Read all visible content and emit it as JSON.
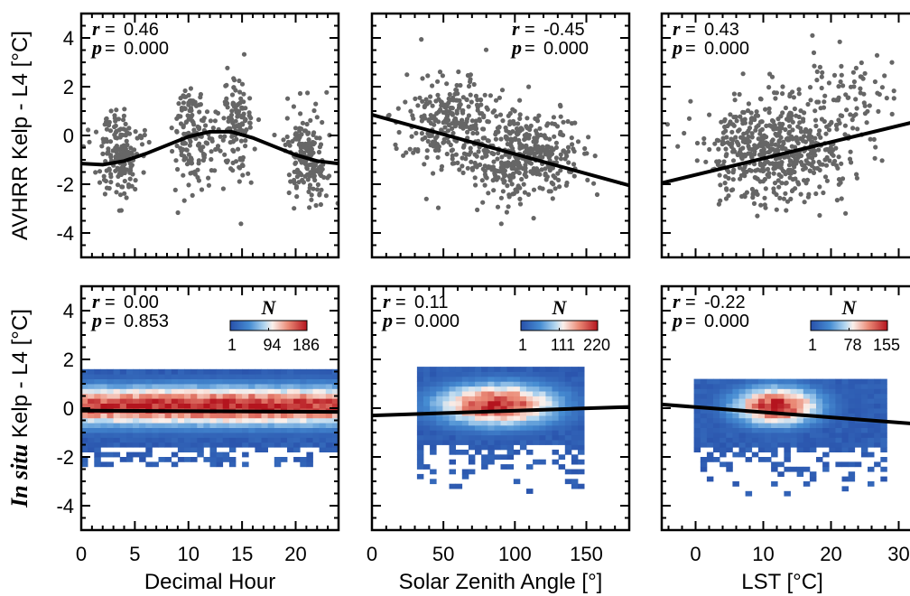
{
  "figure": {
    "row_ylabels": [
      {
        "parts": [
          "AVHRR Kelp - L4 [°C]"
        ]
      },
      {
        "italic": "In situ",
        "rest": " Kelp - L4 [°C]"
      }
    ],
    "xlabels": [
      "Decimal Hour",
      "Solar Zenith Angle [°]",
      "LST [°C]"
    ]
  },
  "chart_data": [
    {
      "id": "top-left",
      "type": "scatter",
      "xlim": [
        0,
        24
      ],
      "ylim": [
        -5,
        5
      ],
      "xticks": [
        0,
        5,
        10,
        15,
        20
      ],
      "yticks": [
        -4,
        -2,
        0,
        2,
        4
      ],
      "xtick_labels": [
        "0",
        "5",
        "10",
        "15",
        "20"
      ],
      "ytick_labels": [
        "-4",
        "-2",
        "0",
        "2",
        "4"
      ],
      "stats": {
        "r_label": "r",
        "r": "0.46",
        "p_label": "p",
        "p": "0.000"
      },
      "stats_position": "top-left",
      "point_color": "#666666",
      "clusters": [
        {
          "x_center": 3.5,
          "x_spread": 1.0,
          "y_center": -0.9,
          "y_spread": 1.1,
          "n": 170
        },
        {
          "x_center": 10.3,
          "x_spread": 0.9,
          "y_center": 0.0,
          "y_spread": 1.3,
          "n": 150
        },
        {
          "x_center": 14.3,
          "x_spread": 0.9,
          "y_center": 0.5,
          "y_spread": 1.3,
          "n": 130
        },
        {
          "x_center": 21.0,
          "x_spread": 1.0,
          "y_center": -0.8,
          "y_spread": 1.1,
          "n": 180
        }
      ],
      "fit_line": {
        "x": [
          0,
          2,
          4,
          6,
          8,
          10,
          12,
          14,
          16,
          18,
          20,
          22,
          24
        ],
        "y": [
          -1.15,
          -1.2,
          -1.05,
          -0.75,
          -0.4,
          -0.05,
          0.15,
          0.15,
          -0.1,
          -0.45,
          -0.8,
          -1.05,
          -1.15
        ]
      }
    },
    {
      "id": "top-middle",
      "type": "scatter",
      "xlim": [
        0,
        180
      ],
      "ylim": [
        -5,
        5
      ],
      "xticks": [
        0,
        50,
        100,
        150
      ],
      "yticks": [
        -4,
        -2,
        0,
        2,
        4
      ],
      "xtick_labels": [
        "0",
        "50",
        "100",
        "150"
      ],
      "ytick_labels": [],
      "stats": {
        "r_label": "r",
        "r": "-0.45",
        "p_label": "p",
        "p": "0.000"
      },
      "stats_position": "top-right",
      "point_color": "#666666",
      "clusters": [
        {
          "x_center": 55,
          "x_spread": 18,
          "y_center": 0.6,
          "y_spread": 1.1,
          "n": 260
        },
        {
          "x_center": 105,
          "x_spread": 20,
          "y_center": -0.8,
          "y_spread": 1.0,
          "n": 420
        }
      ],
      "fit_line": {
        "x": [
          0,
          180
        ],
        "y": [
          0.85,
          -2.05
        ]
      }
    },
    {
      "id": "top-right",
      "type": "scatter",
      "xlim": [
        -5,
        33
      ],
      "ylim": [
        -5,
        5
      ],
      "xticks": [
        0,
        10,
        20,
        30
      ],
      "yticks": [
        -4,
        -2,
        0,
        2,
        4
      ],
      "xtick_labels": [
        "0",
        "10",
        "20",
        "30"
      ],
      "ytick_labels": [],
      "stats": {
        "r_label": "r",
        "r": "0.43",
        "p_label": "p",
        "p": "0.000"
      },
      "stats_position": "top-left",
      "point_color": "#666666",
      "clusters": [
        {
          "x_center": 12,
          "x_spread": 5,
          "y_center": -0.6,
          "y_spread": 1.2,
          "n": 560
        },
        {
          "x_center": 22,
          "x_spread": 3.5,
          "y_center": 1.3,
          "y_spread": 1.3,
          "n": 90
        }
      ],
      "fit_line": {
        "x": [
          -5,
          33
        ],
        "y": [
          -1.95,
          0.6
        ]
      }
    },
    {
      "id": "bottom-left",
      "type": "heatmap",
      "xlim": [
        0,
        24
      ],
      "ylim": [
        -5,
        5
      ],
      "xticks": [
        0,
        5,
        10,
        15,
        20
      ],
      "yticks": [
        -4,
        -2,
        0,
        2,
        4
      ],
      "xtick_labels": [
        "0",
        "5",
        "10",
        "15",
        "20"
      ],
      "ytick_labels": [
        "-4",
        "-2",
        "0",
        "2",
        "4"
      ],
      "stats": {
        "r_label": "r",
        "r": "0.00",
        "p_label": "p",
        "p": "0.853"
      },
      "stats_position": "top-left",
      "colorbar": {
        "label": "N",
        "tick_labels": [
          "1",
          "94",
          "186"
        ],
        "min": 1,
        "max": 186
      },
      "density": {
        "x_range": [
          0,
          24
        ],
        "y_range": [
          -2.4,
          1.6
        ],
        "x_center": 12,
        "x_spread": 30,
        "y_center": 0.1,
        "y_spread": 0.55,
        "peak_x": [
          3,
          6,
          8.5,
          11,
          15,
          17.5,
          21
        ]
      },
      "fit_line": {
        "x": [
          0,
          24
        ],
        "y": [
          -0.1,
          -0.15
        ]
      }
    },
    {
      "id": "bottom-middle",
      "type": "heatmap",
      "xlim": [
        0,
        180
      ],
      "ylim": [
        -5,
        5
      ],
      "xticks": [
        0,
        50,
        100,
        150
      ],
      "yticks": [
        -4,
        -2,
        0,
        2,
        4
      ],
      "xtick_labels": [
        "0",
        "50",
        "100",
        "150"
      ],
      "ytick_labels": [],
      "stats": {
        "r_label": "r",
        "r": "0.11",
        "p_label": "p",
        "p": "0.000"
      },
      "stats_position": "top-left",
      "colorbar": {
        "label": "N",
        "tick_labels": [
          "1",
          "111",
          "220"
        ],
        "min": 1,
        "max": 220
      },
      "density": {
        "x_range": [
          30,
          150
        ],
        "y_range": [
          -3.5,
          1.6
        ],
        "x_center": 88,
        "x_spread": 30,
        "y_center": 0.15,
        "y_spread": 0.6,
        "peak_x": []
      },
      "fit_line": {
        "x": [
          0,
          180
        ],
        "y": [
          -0.3,
          0.05
        ]
      }
    },
    {
      "id": "bottom-right",
      "type": "heatmap",
      "xlim": [
        -5,
        33
      ],
      "ylim": [
        -5,
        5
      ],
      "xticks": [
        0,
        10,
        20,
        30
      ],
      "yticks": [
        -4,
        -2,
        0,
        2,
        4
      ],
      "xtick_labels": [
        "0",
        "10",
        "20",
        "30"
      ],
      "ytick_labels": [],
      "stats": {
        "r_label": "r",
        "r": "-0.22",
        "p_label": "p",
        "p": "0.000"
      },
      "stats_position": "top-left",
      "colorbar": {
        "label": "N",
        "tick_labels": [
          "1",
          "78",
          "155"
        ],
        "min": 1,
        "max": 155
      },
      "density": {
        "x_range": [
          0,
          28
        ],
        "y_range": [
          -3.6,
          1.2
        ],
        "x_center": 12,
        "x_spread": 4.5,
        "y_center": 0.1,
        "y_spread": 0.55,
        "peak_x": []
      },
      "fit_line": {
        "x": [
          -5,
          33
        ],
        "y": [
          0.15,
          -0.65
        ]
      }
    }
  ]
}
